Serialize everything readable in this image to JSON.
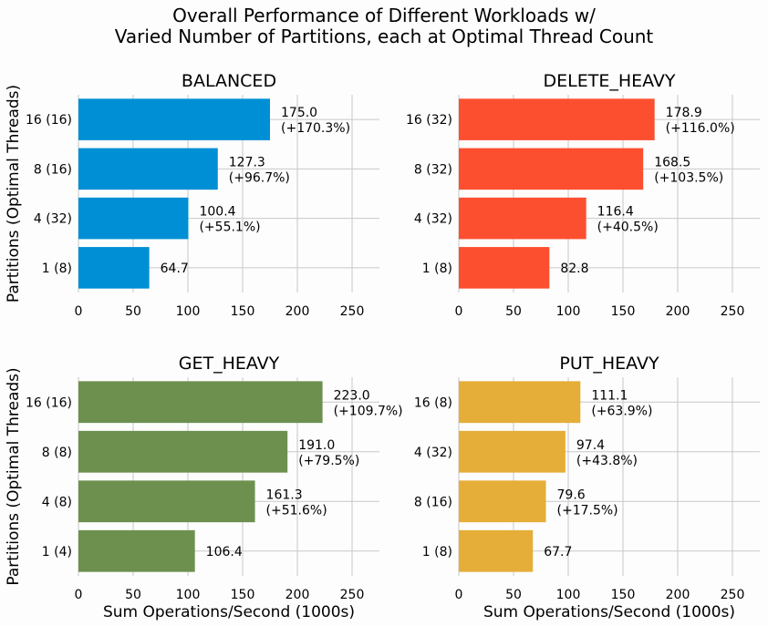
{
  "figure": {
    "title_line1": "Overall Performance of Different Workloads w/",
    "title_line2": "Varied Number of Partitions, each at Optimal Thread Count",
    "ylabel": "Partitions (Optimal Threads)",
    "xlabel": "Sum Operations/Second (1000s)"
  },
  "chart_data": [
    {
      "type": "bar",
      "orientation": "horizontal",
      "title": "BALANCED",
      "color": "#008fd5",
      "categories": [
        "16 (16)",
        "8 (16)",
        "4 (32)",
        "1 (8)"
      ],
      "values": [
        175.0,
        127.3,
        100.4,
        64.7
      ],
      "annotations": [
        "175.0\n(+170.3%)",
        "127.3\n(+96.7%)",
        "100.4\n(+55.1%)",
        "64.7"
      ],
      "xlim": [
        0,
        275
      ],
      "xticks": [
        0,
        50,
        100,
        150,
        200,
        250
      ],
      "grid": true
    },
    {
      "type": "bar",
      "orientation": "horizontal",
      "title": "DELETE_HEAVY",
      "color": "#fc4f30",
      "categories": [
        "16 (32)",
        "8 (32)",
        "4 (32)",
        "1 (8)"
      ],
      "values": [
        178.9,
        168.5,
        116.4,
        82.8
      ],
      "annotations": [
        "178.9\n(+116.0%)",
        "168.5\n(+103.5%)",
        "116.4\n(+40.5%)",
        "82.8"
      ],
      "xlim": [
        0,
        275
      ],
      "xticks": [
        0,
        50,
        100,
        150,
        200,
        250
      ],
      "grid": true
    },
    {
      "type": "bar",
      "orientation": "horizontal",
      "title": "GET_HEAVY",
      "color": "#6d904f",
      "categories": [
        "16 (16)",
        "8 (8)",
        "4 (8)",
        "1 (4)"
      ],
      "values": [
        223.0,
        191.0,
        161.3,
        106.4
      ],
      "annotations": [
        "223.0\n(+109.7%)",
        "191.0\n(+79.5%)",
        "161.3\n(+51.6%)",
        "106.4"
      ],
      "xlim": [
        0,
        275
      ],
      "xticks": [
        0,
        50,
        100,
        150,
        200,
        250
      ],
      "grid": true
    },
    {
      "type": "bar",
      "orientation": "horizontal",
      "title": "PUT_HEAVY",
      "color": "#e5ae38",
      "categories": [
        "16 (8)",
        "4 (32)",
        "8 (16)",
        "1 (8)"
      ],
      "values": [
        111.1,
        97.4,
        79.6,
        67.7
      ],
      "annotations": [
        "111.1\n(+63.9%)",
        "97.4\n(+43.8%)",
        "79.6\n(+17.5%)",
        "67.7"
      ],
      "xlim": [
        0,
        275
      ],
      "xticks": [
        0,
        50,
        100,
        150,
        200,
        250
      ],
      "grid": true
    }
  ]
}
